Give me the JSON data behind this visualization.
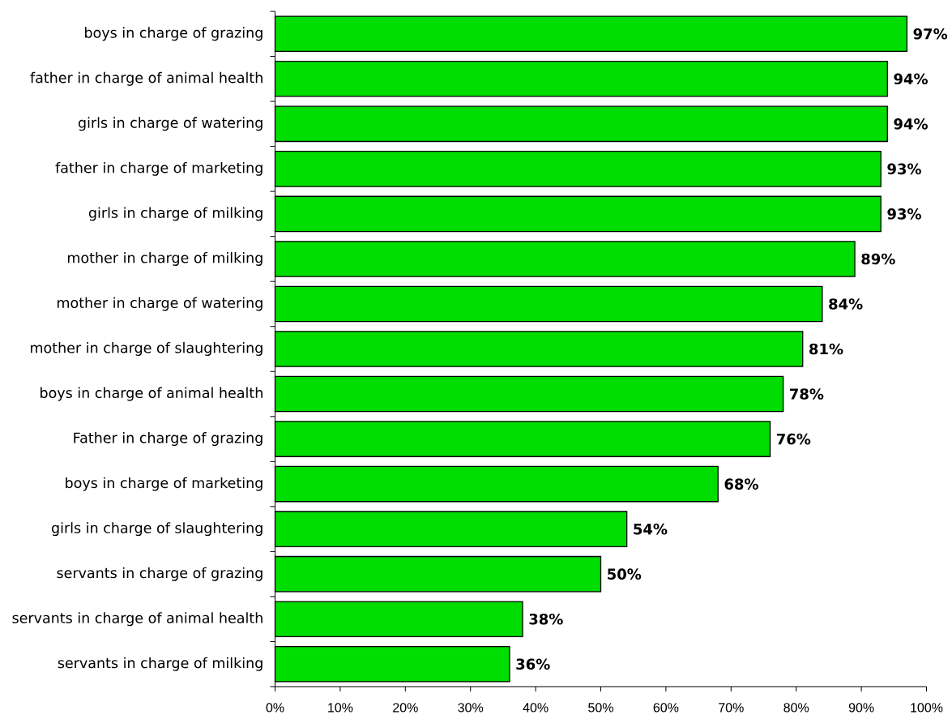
{
  "chart_data": {
    "type": "bar",
    "orientation": "horizontal",
    "categories": [
      "boys in charge of grazing",
      "father in charge of animal health",
      "girls in charge of watering",
      "father in charge of marketing",
      "girls in charge of milking",
      "mother in charge of milking",
      "mother in charge of watering",
      "mother in charge of slaughtering",
      "boys in charge of animal health",
      "Father in charge of grazing",
      "boys in charge of marketing",
      "girls in charge of slaughtering",
      "servants in charge of grazing",
      "servants in charge of animal health",
      "servants in charge of milking"
    ],
    "values": [
      97,
      94,
      94,
      93,
      93,
      89,
      84,
      81,
      78,
      76,
      68,
      54,
      50,
      38,
      36
    ],
    "value_labels": [
      "97%",
      "94%",
      "94%",
      "93%",
      "93%",
      "89%",
      "84%",
      "81%",
      "78%",
      "76%",
      "68%",
      "54%",
      "50%",
      "38%",
      "36%"
    ],
    "color": "#00dd00",
    "xlim": [
      0,
      100
    ],
    "xticks": [
      {
        "value": 0,
        "label": "0%"
      },
      {
        "value": 10,
        "label": "10%"
      },
      {
        "value": 20,
        "label": "20%"
      },
      {
        "value": 30,
        "label": "30%"
      },
      {
        "value": 40,
        "label": "40%"
      },
      {
        "value": 50,
        "label": "50%"
      },
      {
        "value": 60,
        "label": "60%"
      },
      {
        "value": 70,
        "label": "70%"
      },
      {
        "value": 80,
        "label": "80%"
      },
      {
        "value": 90,
        "label": "90%"
      },
      {
        "value": 100,
        "label": "100%"
      }
    ]
  }
}
